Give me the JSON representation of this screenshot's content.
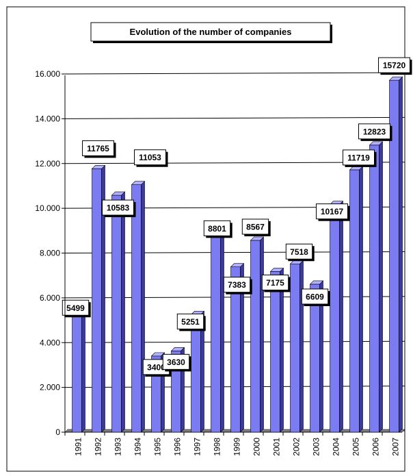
{
  "chart_data": {
    "type": "bar",
    "title": "Evolution of the number of companies",
    "categories": [
      "1991",
      "1992",
      "1993",
      "1994",
      "1995",
      "1996",
      "1997",
      "1998",
      "1999",
      "2000",
      "2001",
      "2002",
      "2003",
      "2004",
      "2005",
      "2006",
      "2007"
    ],
    "values": [
      5499,
      11765,
      10583,
      11053,
      3400,
      3630,
      5251,
      8801,
      7383,
      8567,
      7175,
      7518,
      6609,
      10167,
      11719,
      12823,
      15720
    ],
    "y_ticks": [
      "0",
      "2.000",
      "4.000",
      "6.000",
      "8.000",
      "10.000",
      "12.000",
      "14.000",
      "16.000"
    ],
    "ylim": [
      0,
      16000
    ],
    "xlabel": "",
    "ylabel": "",
    "grid": true,
    "legend": "none",
    "colors": {
      "bar_front": "#7b7bf2",
      "bar_side": "#3a3aa0",
      "bar_top": "#b0b0ff",
      "floor": "#808080",
      "gridline": "#000000"
    }
  }
}
